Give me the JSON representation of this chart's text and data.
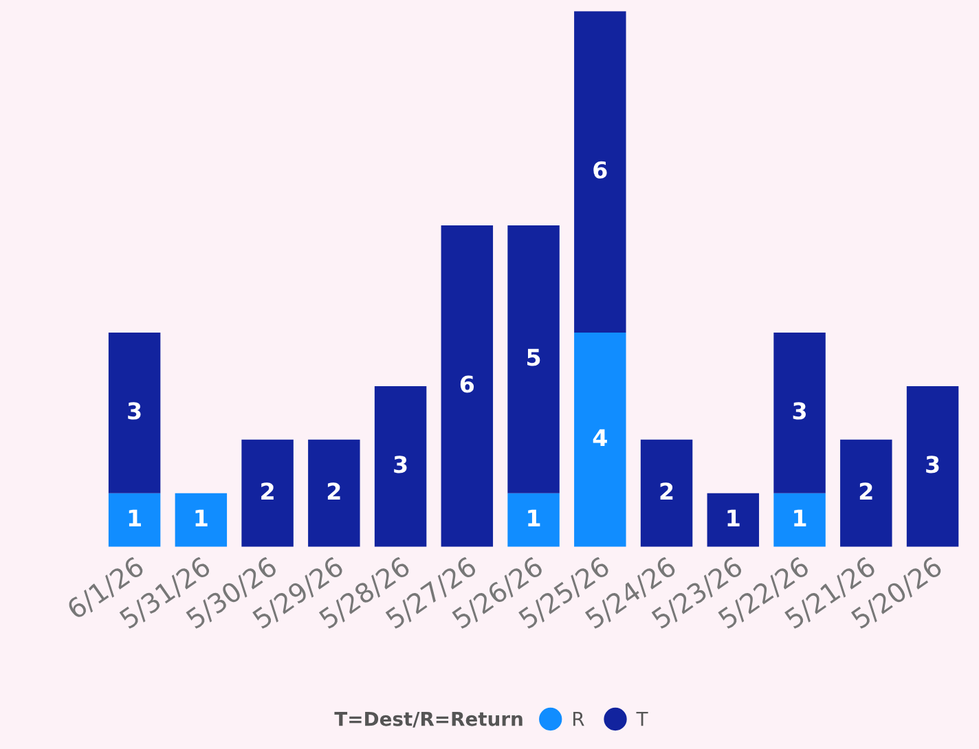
{
  "chart_data": {
    "type": "bar",
    "stacked": true,
    "data_labels": true,
    "grid": false,
    "legend": "bottom",
    "legend_title": "T=Dest/R=Return",
    "categories": [
      "6/1/26",
      "5/31/26",
      "5/30/26",
      "5/29/26",
      "5/28/26",
      "5/27/26",
      "5/26/26",
      "5/25/26",
      "5/24/26",
      "5/23/26",
      "5/22/26",
      "5/21/26",
      "5/20/26"
    ],
    "series": [
      {
        "name": "R",
        "color": "#118dff",
        "values": [
          1,
          1,
          null,
          null,
          null,
          null,
          1,
          4,
          null,
          null,
          1,
          null,
          null
        ]
      },
      {
        "name": "T",
        "color": "#12239e",
        "values": [
          3,
          null,
          2,
          2,
          3,
          6,
          5,
          6,
          2,
          1,
          3,
          2,
          3
        ]
      }
    ]
  }
}
